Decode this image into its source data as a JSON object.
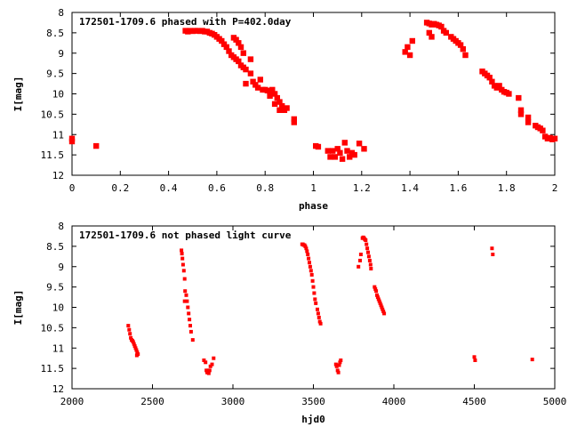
{
  "chart_data": [
    {
      "type": "scatter",
      "title": "172501-1709.6 phased with P=402.0day",
      "xlabel": "phase",
      "ylabel": "I[mag]",
      "xlim": [
        0,
        2
      ],
      "ylim": [
        12,
        8
      ],
      "y_inverted": true,
      "x_ticks": [
        "0",
        "0.2",
        "0.4",
        "0.6",
        "0.8",
        "1",
        "1.2",
        "1.4",
        "1.6",
        "1.8",
        "2"
      ],
      "y_ticks": [
        "8",
        "8.5",
        "9",
        "9.5",
        "10",
        "10.5",
        "11",
        "11.5",
        "12"
      ],
      "grid": false,
      "marker_color": "#ff0000",
      "series": [
        {
          "points": [
            [
              0.0,
              11.1
            ],
            [
              0.0,
              11.17
            ],
            [
              0.1,
              11.28
            ],
            [
              0.47,
              8.45
            ],
            [
              0.48,
              8.47
            ],
            [
              0.49,
              8.45
            ],
            [
              0.5,
              8.46
            ],
            [
              0.51,
              8.45
            ],
            [
              0.52,
              8.45
            ],
            [
              0.53,
              8.46
            ],
            [
              0.54,
              8.45
            ],
            [
              0.55,
              8.47
            ],
            [
              0.56,
              8.47
            ],
            [
              0.57,
              8.5
            ],
            [
              0.58,
              8.52
            ],
            [
              0.59,
              8.55
            ],
            [
              0.6,
              8.6
            ],
            [
              0.61,
              8.65
            ],
            [
              0.62,
              8.7
            ],
            [
              0.63,
              8.78
            ],
            [
              0.64,
              8.85
            ],
            [
              0.65,
              8.95
            ],
            [
              0.66,
              9.05
            ],
            [
              0.67,
              9.1
            ],
            [
              0.68,
              9.15
            ],
            [
              0.69,
              9.2
            ],
            [
              0.7,
              9.3
            ],
            [
              0.71,
              9.35
            ],
            [
              0.72,
              9.4
            ],
            [
              0.67,
              8.62
            ],
            [
              0.68,
              8.67
            ],
            [
              0.69,
              8.75
            ],
            [
              0.7,
              8.85
            ],
            [
              0.71,
              9.0
            ],
            [
              0.74,
              9.15
            ],
            [
              0.72,
              9.75
            ],
            [
              0.74,
              9.5
            ],
            [
              0.75,
              9.7
            ],
            [
              0.76,
              9.78
            ],
            [
              0.77,
              9.85
            ],
            [
              0.78,
              9.65
            ],
            [
              0.79,
              9.9
            ],
            [
              0.8,
              9.9
            ],
            [
              0.81,
              9.92
            ],
            [
              0.82,
              9.95
            ],
            [
              0.83,
              9.9
            ],
            [
              0.84,
              10.0
            ],
            [
              0.85,
              10.1
            ],
            [
              0.86,
              10.2
            ],
            [
              0.87,
              10.3
            ],
            [
              0.88,
              10.4
            ],
            [
              0.89,
              10.35
            ],
            [
              0.82,
              10.05
            ],
            [
              0.84,
              10.25
            ],
            [
              0.86,
              10.4
            ],
            [
              0.92,
              10.62
            ],
            [
              0.92,
              10.7
            ],
            [
              1.01,
              11.28
            ],
            [
              1.02,
              11.3
            ],
            [
              1.06,
              11.4
            ],
            [
              1.07,
              11.55
            ],
            [
              1.08,
              11.4
            ],
            [
              1.09,
              11.55
            ],
            [
              1.1,
              11.35
            ],
            [
              1.11,
              11.45
            ],
            [
              1.12,
              11.6
            ],
            [
              1.13,
              11.2
            ],
            [
              1.14,
              11.4
            ],
            [
              1.15,
              11.55
            ],
            [
              1.16,
              11.45
            ],
            [
              1.17,
              11.5
            ],
            [
              1.19,
              11.22
            ],
            [
              1.21,
              11.35
            ],
            [
              1.38,
              8.97
            ],
            [
              1.39,
              8.85
            ],
            [
              1.4,
              9.05
            ],
            [
              1.41,
              8.7
            ],
            [
              1.47,
              8.25
            ],
            [
              1.48,
              8.27
            ],
            [
              1.49,
              8.3
            ],
            [
              1.5,
              8.28
            ],
            [
              1.51,
              8.3
            ],
            [
              1.52,
              8.32
            ],
            [
              1.53,
              8.35
            ],
            [
              1.54,
              8.45
            ],
            [
              1.55,
              8.5
            ],
            [
              1.48,
              8.5
            ],
            [
              1.49,
              8.6
            ],
            [
              1.57,
              8.6
            ],
            [
              1.58,
              8.65
            ],
            [
              1.59,
              8.7
            ],
            [
              1.6,
              8.75
            ],
            [
              1.61,
              8.8
            ],
            [
              1.62,
              8.9
            ],
            [
              1.63,
              9.05
            ],
            [
              1.7,
              9.45
            ],
            [
              1.71,
              9.5
            ],
            [
              1.72,
              9.55
            ],
            [
              1.73,
              9.6
            ],
            [
              1.74,
              9.7
            ],
            [
              1.75,
              9.8
            ],
            [
              1.76,
              9.85
            ],
            [
              1.77,
              9.8
            ],
            [
              1.78,
              9.9
            ],
            [
              1.79,
              9.95
            ],
            [
              1.8,
              9.97
            ],
            [
              1.81,
              10.0
            ],
            [
              1.85,
              10.1
            ],
            [
              1.86,
              10.4
            ],
            [
              1.86,
              10.5
            ],
            [
              1.89,
              10.58
            ],
            [
              1.89,
              10.7
            ],
            [
              1.92,
              10.78
            ],
            [
              1.93,
              10.82
            ],
            [
              1.94,
              10.85
            ],
            [
              1.95,
              10.9
            ],
            [
              1.96,
              11.05
            ],
            [
              1.97,
              11.1
            ],
            [
              1.98,
              11.08
            ],
            [
              1.99,
              11.12
            ],
            [
              2.0,
              11.1
            ]
          ]
        }
      ]
    },
    {
      "type": "scatter",
      "title": "172501-1709.6 not phased light curve",
      "xlabel": "hjd0",
      "ylabel": "I[mag]",
      "xlim": [
        2000,
        5000
      ],
      "ylim": [
        12,
        8
      ],
      "y_inverted": true,
      "x_ticks": [
        "2000",
        "2500",
        "3000",
        "3500",
        "4000",
        "4500",
        "5000"
      ],
      "y_ticks": [
        "8",
        "8.5",
        "9",
        "9.5",
        "10",
        "10.5",
        "11",
        "11.5",
        "12"
      ],
      "grid": false,
      "marker_color": "#ff0000",
      "series": [
        {
          "points": [
            [
              2350,
              10.45
            ],
            [
              2355,
              10.55
            ],
            [
              2360,
              10.65
            ],
            [
              2365,
              10.75
            ],
            [
              2370,
              10.8
            ],
            [
              2375,
              10.82
            ],
            [
              2380,
              10.85
            ],
            [
              2385,
              10.9
            ],
            [
              2390,
              10.95
            ],
            [
              2395,
              11.0
            ],
            [
              2400,
              11.05
            ],
            [
              2405,
              11.1
            ],
            [
              2410,
              11.15
            ],
            [
              2403,
              11.18
            ],
            [
              2680,
              8.6
            ],
            [
              2683,
              8.68
            ],
            [
              2686,
              8.8
            ],
            [
              2690,
              8.95
            ],
            [
              2695,
              9.1
            ],
            [
              2700,
              9.3
            ],
            [
              2703,
              9.6
            ],
            [
              2700,
              9.85
            ],
            [
              2710,
              9.7
            ],
            [
              2715,
              9.85
            ],
            [
              2720,
              10.0
            ],
            [
              2725,
              10.15
            ],
            [
              2730,
              10.3
            ],
            [
              2735,
              10.45
            ],
            [
              2740,
              10.6
            ],
            [
              2750,
              10.8
            ],
            [
              2820,
              11.3
            ],
            [
              2830,
              11.35
            ],
            [
              2835,
              11.55
            ],
            [
              2840,
              11.6
            ],
            [
              2845,
              11.55
            ],
            [
              2850,
              11.62
            ],
            [
              2855,
              11.55
            ],
            [
              2860,
              11.45
            ],
            [
              2870,
              11.4
            ],
            [
              2880,
              11.25
            ],
            [
              3430,
              8.45
            ],
            [
              3435,
              8.45
            ],
            [
              3440,
              8.47
            ],
            [
              3445,
              8.47
            ],
            [
              3450,
              8.5
            ],
            [
              3455,
              8.55
            ],
            [
              3460,
              8.62
            ],
            [
              3465,
              8.7
            ],
            [
              3470,
              8.8
            ],
            [
              3475,
              8.9
            ],
            [
              3480,
              9.0
            ],
            [
              3485,
              9.1
            ],
            [
              3490,
              9.2
            ],
            [
              3495,
              9.35
            ],
            [
              3500,
              9.5
            ],
            [
              3505,
              9.65
            ],
            [
              3510,
              9.8
            ],
            [
              3515,
              9.9
            ],
            [
              3525,
              10.05
            ],
            [
              3530,
              10.15
            ],
            [
              3535,
              10.25
            ],
            [
              3540,
              10.35
            ],
            [
              3545,
              10.4
            ],
            [
              3640,
              11.4
            ],
            [
              3645,
              11.45
            ],
            [
              3650,
              11.55
            ],
            [
              3655,
              11.6
            ],
            [
              3660,
              11.42
            ],
            [
              3665,
              11.35
            ],
            [
              3670,
              11.3
            ],
            [
              3780,
              9.0
            ],
            [
              3790,
              8.85
            ],
            [
              3795,
              8.7
            ],
            [
              3805,
              8.3
            ],
            [
              3810,
              8.28
            ],
            [
              3815,
              8.3
            ],
            [
              3820,
              8.33
            ],
            [
              3825,
              8.35
            ],
            [
              3830,
              8.45
            ],
            [
              3835,
              8.55
            ],
            [
              3840,
              8.65
            ],
            [
              3845,
              8.75
            ],
            [
              3850,
              8.85
            ],
            [
              3855,
              8.95
            ],
            [
              3858,
              9.05
            ],
            [
              3880,
              9.5
            ],
            [
              3885,
              9.55
            ],
            [
              3890,
              9.6
            ],
            [
              3895,
              9.7
            ],
            [
              3900,
              9.75
            ],
            [
              3905,
              9.8
            ],
            [
              3910,
              9.85
            ],
            [
              3915,
              9.9
            ],
            [
              3920,
              9.95
            ],
            [
              3925,
              10.0
            ],
            [
              3930,
              10.05
            ],
            [
              3935,
              10.1
            ],
            [
              3940,
              10.15
            ],
            [
              4500,
              11.22
            ],
            [
              4505,
              11.3
            ],
            [
              4610,
              8.55
            ],
            [
              4615,
              8.7
            ],
            [
              4860,
              11.28
            ]
          ]
        }
      ]
    }
  ]
}
